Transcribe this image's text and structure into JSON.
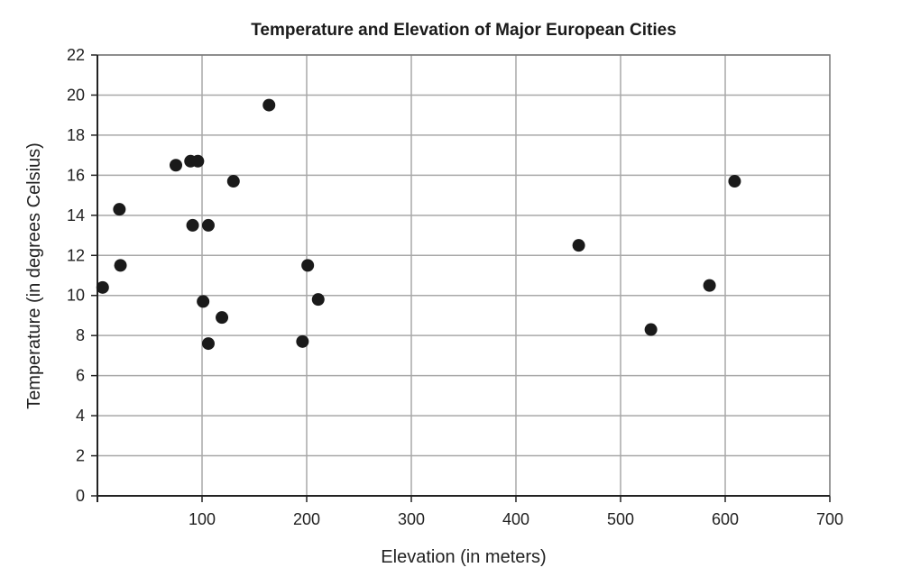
{
  "chart_data": {
    "type": "scatter",
    "title": "Temperature and Elevation of Major European Cities",
    "xlabel": "Elevation (in meters)",
    "ylabel": "Temperature (in degrees Celsius)",
    "xlim": [
      0,
      700
    ],
    "ylim": [
      0,
      22
    ],
    "xticks": [
      100,
      200,
      300,
      400,
      500,
      600,
      700
    ],
    "yticks": [
      0,
      2,
      4,
      6,
      8,
      10,
      12,
      14,
      16,
      18,
      20,
      22
    ],
    "grid": true,
    "marker_color": "#1a1a1a",
    "points": [
      {
        "x": 5,
        "y": 10.4
      },
      {
        "x": 21,
        "y": 14.3
      },
      {
        "x": 22,
        "y": 11.5
      },
      {
        "x": 75,
        "y": 16.5
      },
      {
        "x": 89,
        "y": 16.7
      },
      {
        "x": 96,
        "y": 16.7
      },
      {
        "x": 91,
        "y": 13.5
      },
      {
        "x": 106,
        "y": 13.5
      },
      {
        "x": 101,
        "y": 9.7
      },
      {
        "x": 106,
        "y": 7.6
      },
      {
        "x": 119,
        "y": 8.9
      },
      {
        "x": 130,
        "y": 15.7
      },
      {
        "x": 164,
        "y": 19.5
      },
      {
        "x": 196,
        "y": 7.7
      },
      {
        "x": 201,
        "y": 11.5
      },
      {
        "x": 211,
        "y": 9.8
      },
      {
        "x": 460,
        "y": 12.5
      },
      {
        "x": 529,
        "y": 8.3
      },
      {
        "x": 585,
        "y": 10.5
      },
      {
        "x": 609,
        "y": 15.7
      }
    ]
  }
}
